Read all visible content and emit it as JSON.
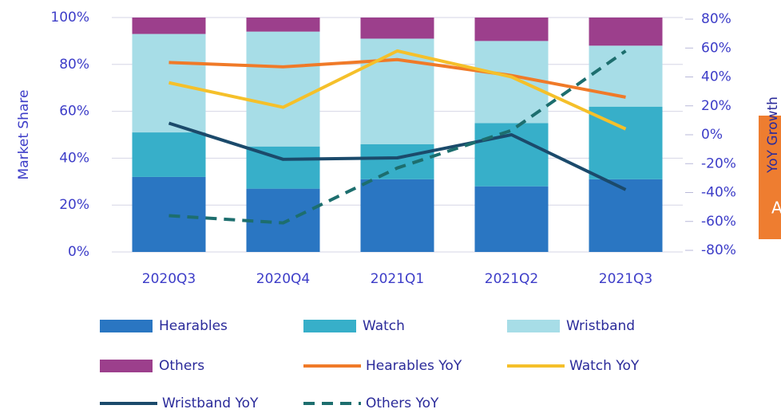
{
  "chart_data": {
    "type": "bar",
    "categories": [
      "2020Q3",
      "2020Q4",
      "2021Q1",
      "2021Q2",
      "2021Q3"
    ],
    "ylabel": "Market Share",
    "y2label": "YoY Growth",
    "annotation": "A",
    "ylim": [
      0,
      100
    ],
    "yticks": [
      {
        "value": 0,
        "label": "0%"
      },
      {
        "value": 20,
        "label": "20%"
      },
      {
        "value": 40,
        "label": "40%"
      },
      {
        "value": 60,
        "label": "60%"
      },
      {
        "value": 80,
        "label": "80%"
      },
      {
        "value": 100,
        "label": "100%"
      }
    ],
    "y2lim": [
      -80,
      80
    ],
    "y2ticks": [
      {
        "value": -80,
        "label": "-80%"
      },
      {
        "value": -60,
        "label": "-60%"
      },
      {
        "value": -40,
        "label": "-40%"
      },
      {
        "value": -20,
        "label": "-20%"
      },
      {
        "value": 0,
        "label": "0%"
      },
      {
        "value": 20,
        "label": "20%"
      },
      {
        "value": 40,
        "label": "40%"
      },
      {
        "value": 60,
        "label": "60%"
      },
      {
        "value": 80,
        "label": "80%"
      }
    ],
    "grid": true,
    "series": [
      {
        "name": "Hearables",
        "type": "bar",
        "color": "#2a76c2",
        "values": [
          32,
          27,
          31,
          28,
          31
        ]
      },
      {
        "name": "Watch",
        "type": "bar",
        "color": "#37afc9",
        "values": [
          19,
          18,
          15,
          27,
          31
        ]
      },
      {
        "name": "Wristband",
        "type": "bar",
        "color": "#a7dde7",
        "values": [
          42,
          49,
          45,
          35,
          26
        ]
      },
      {
        "name": "Others",
        "type": "bar",
        "color": "#9c3f8c",
        "values": [
          7,
          6,
          9,
          10,
          12
        ]
      },
      {
        "name": "Hearables YoY",
        "type": "line",
        "axis": "y2",
        "color": "#f07a28",
        "values": [
          50,
          47,
          52,
          41,
          26
        ]
      },
      {
        "name": "Watch YoY",
        "type": "line",
        "axis": "y2",
        "color": "#f5c02a",
        "values": [
          36,
          19,
          58,
          40,
          4
        ]
      },
      {
        "name": "Wristband YoY",
        "type": "line",
        "axis": "y2",
        "color": "#1b4a6b",
        "values": [
          8,
          -17,
          -16,
          0,
          -38
        ]
      },
      {
        "name": "Others YoY",
        "type": "line",
        "axis": "y2",
        "color": "#1d6e6e",
        "dashed": true,
        "values": [
          -56,
          -61,
          -23,
          3,
          58
        ]
      }
    ]
  }
}
